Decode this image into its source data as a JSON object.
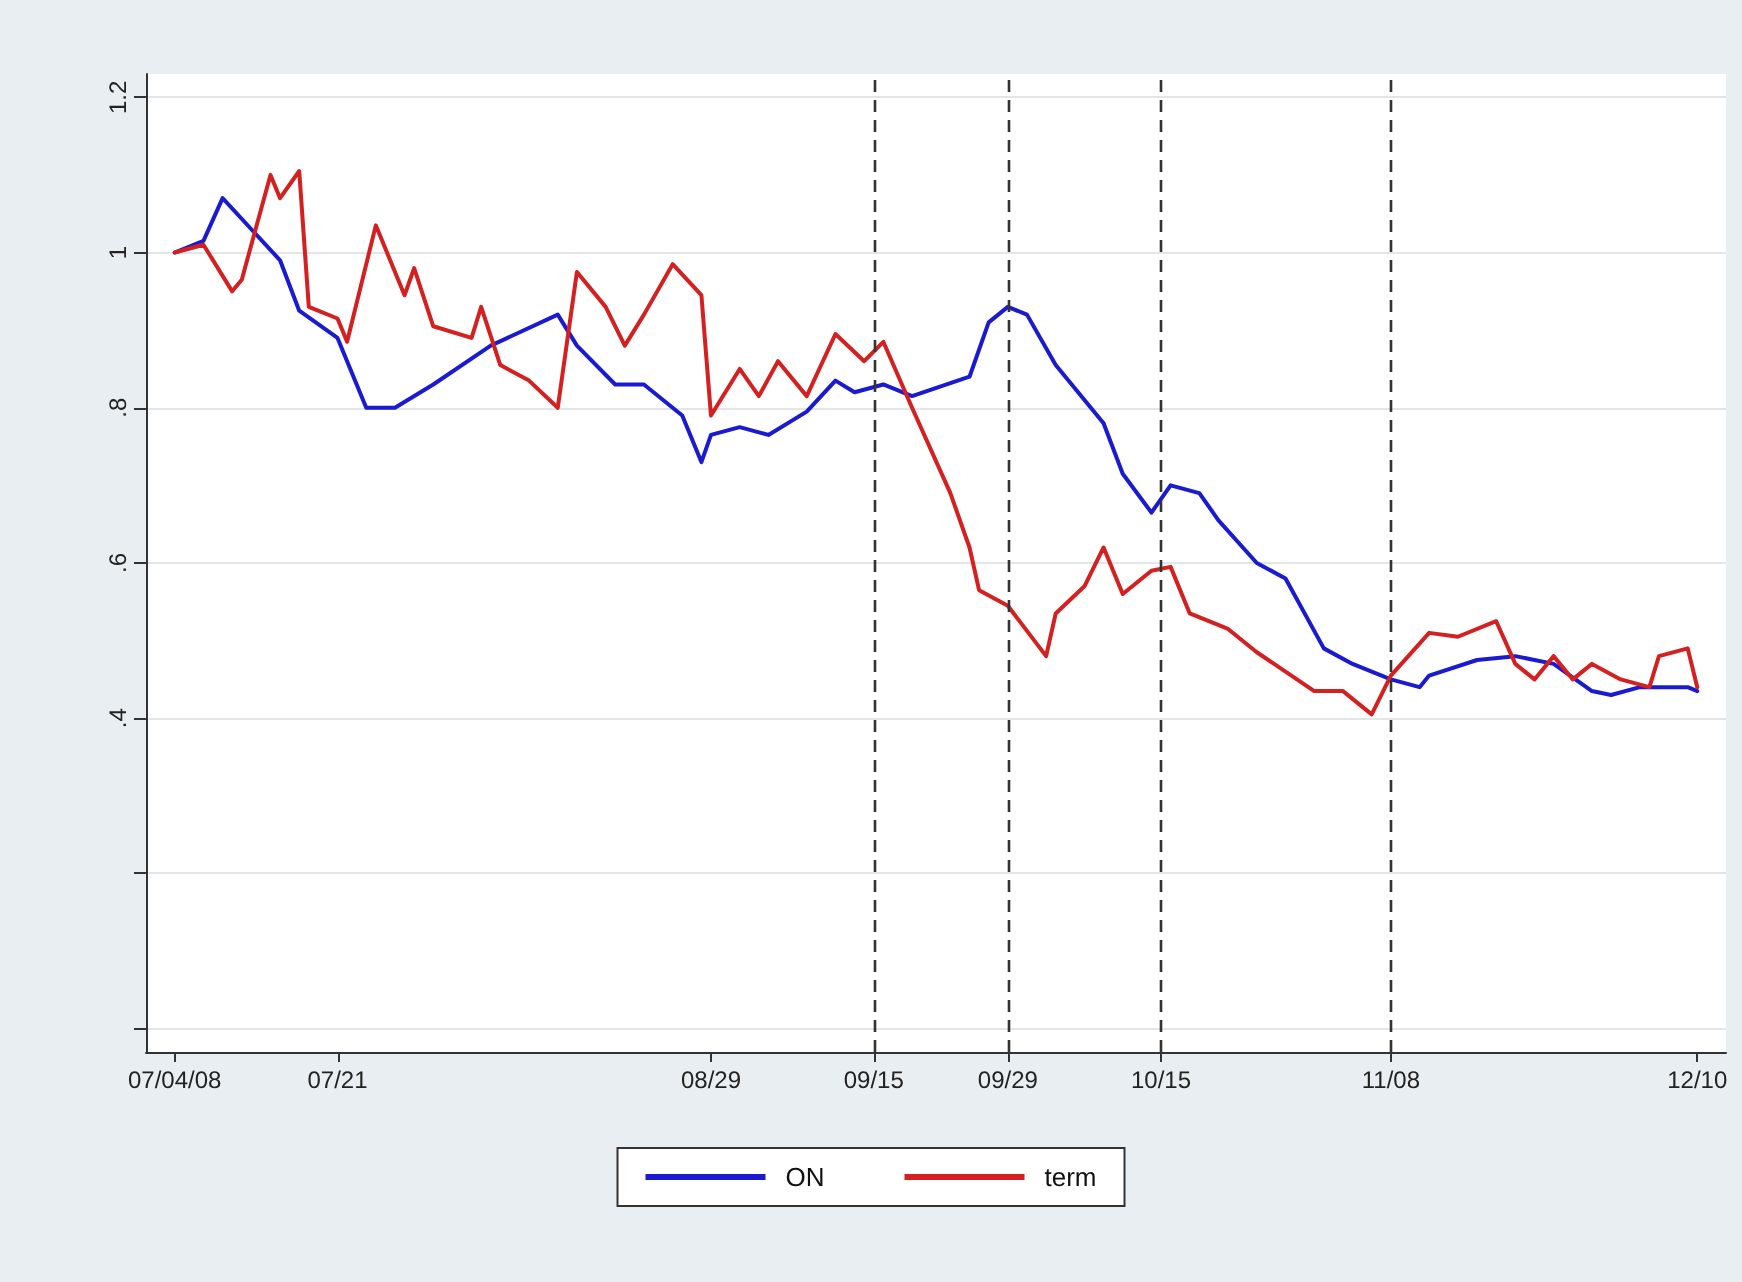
{
  "chart_data": {
    "type": "line",
    "xlim": [
      "2008-07-01",
      "2008-12-13"
    ],
    "xticks": [
      {
        "value": "2008-07-04",
        "label": "07/04/08"
      },
      {
        "value": "2008-07-21",
        "label": "07/21"
      },
      {
        "value": "2008-08-29",
        "label": "08/29"
      },
      {
        "value": "2008-09-15",
        "label": "09/15"
      },
      {
        "value": "2008-09-29",
        "label": "09/29"
      },
      {
        "value": "2008-10-15",
        "label": "10/15"
      },
      {
        "value": "2008-11-08",
        "label": "11/08"
      },
      {
        "value": "2008-12-10",
        "label": "12/10"
      }
    ],
    "ylim": [
      -0.03,
      1.23
    ],
    "yticks": [
      {
        "value": 0,
        "label": null
      },
      {
        "value": 0.2,
        "label": null
      },
      {
        "value": 0.4,
        "label": ".4"
      },
      {
        "value": 0.6,
        "label": ".6"
      },
      {
        "value": 0.8,
        "label": ".8"
      },
      {
        "value": 1,
        "label": "1"
      },
      {
        "value": 1.2,
        "label": "1.2"
      }
    ],
    "grid": "y",
    "legend": "bottom",
    "marker": "none",
    "line_style": "solid",
    "ref_lines": [
      {
        "axis": "x",
        "value": "2008-09-15",
        "color": "#333333",
        "line_style": "dashed"
      },
      {
        "axis": "x",
        "value": "2008-09-29",
        "color": "#333333",
        "line_style": "dashed"
      },
      {
        "axis": "x",
        "value": "2008-10-15",
        "color": "#333333",
        "line_style": "dashed"
      },
      {
        "axis": "x",
        "value": "2008-11-08",
        "color": "#333333",
        "line_style": "dashed"
      }
    ],
    "series": [
      {
        "name": "ON",
        "color": "#1a1ad0",
        "x": [
          "2008-07-04",
          "2008-07-07",
          "2008-07-09",
          "2008-07-12",
          "2008-07-15",
          "2008-07-17",
          "2008-07-21",
          "2008-07-24",
          "2008-07-27",
          "2008-07-31",
          "2008-08-06",
          "2008-08-13",
          "2008-08-15",
          "2008-08-19",
          "2008-08-22",
          "2008-08-26",
          "2008-08-28",
          "2008-08-29",
          "2008-09-01",
          "2008-09-04",
          "2008-09-08",
          "2008-09-11",
          "2008-09-13",
          "2008-09-16",
          "2008-09-19",
          "2008-09-25",
          "2008-09-27",
          "2008-09-29",
          "2008-10-01",
          "2008-10-04",
          "2008-10-09",
          "2008-10-11",
          "2008-10-14",
          "2008-10-16",
          "2008-10-19",
          "2008-10-21",
          "2008-10-25",
          "2008-10-28",
          "2008-11-01",
          "2008-11-04",
          "2008-11-08",
          "2008-11-11",
          "2008-11-12",
          "2008-11-17",
          "2008-11-21",
          "2008-11-25",
          "2008-11-29",
          "2008-12-01",
          "2008-12-04",
          "2008-12-09",
          "2008-12-10"
        ],
        "values": [
          1.0,
          1.015,
          1.07,
          1.03,
          0.99,
          0.925,
          0.89,
          0.8,
          0.8,
          0.83,
          0.88,
          0.92,
          0.88,
          0.83,
          0.83,
          0.79,
          0.73,
          0.765,
          0.775,
          0.765,
          0.795,
          0.835,
          0.82,
          0.83,
          0.815,
          0.84,
          0.91,
          0.93,
          0.92,
          0.855,
          0.78,
          0.715,
          0.665,
          0.7,
          0.69,
          0.655,
          0.6,
          0.58,
          0.49,
          0.47,
          0.45,
          0.44,
          0.455,
          0.475,
          0.48,
          0.47,
          0.435,
          0.43,
          0.44,
          0.44,
          0.435
        ]
      },
      {
        "name": "term",
        "color": "#d42020",
        "x": [
          "2008-07-04",
          "2008-07-07",
          "2008-07-10",
          "2008-07-11",
          "2008-07-14",
          "2008-07-15",
          "2008-07-17",
          "2008-07-18",
          "2008-07-21",
          "2008-07-22",
          "2008-07-25",
          "2008-07-28",
          "2008-07-29",
          "2008-07-31",
          "2008-08-04",
          "2008-08-05",
          "2008-08-07",
          "2008-08-10",
          "2008-08-13",
          "2008-08-15",
          "2008-08-18",
          "2008-08-20",
          "2008-08-22",
          "2008-08-25",
          "2008-08-28",
          "2008-08-29",
          "2008-09-01",
          "2008-09-03",
          "2008-09-05",
          "2008-09-08",
          "2008-09-11",
          "2008-09-14",
          "2008-09-16",
          "2008-09-19",
          "2008-09-23",
          "2008-09-25",
          "2008-09-26",
          "2008-09-29",
          "2008-10-03",
          "2008-10-04",
          "2008-10-07",
          "2008-10-09",
          "2008-10-11",
          "2008-10-14",
          "2008-10-16",
          "2008-10-18",
          "2008-10-22",
          "2008-10-25",
          "2008-10-31",
          "2008-11-03",
          "2008-11-06",
          "2008-11-08",
          "2008-11-12",
          "2008-11-15",
          "2008-11-19",
          "2008-11-21",
          "2008-11-23",
          "2008-11-25",
          "2008-11-27",
          "2008-11-29",
          "2008-12-02",
          "2008-12-05",
          "2008-12-06",
          "2008-12-09",
          "2008-12-10"
        ],
        "values": [
          1.0,
          1.01,
          0.95,
          0.965,
          1.1,
          1.07,
          1.105,
          0.93,
          0.915,
          0.885,
          1.035,
          0.945,
          0.98,
          0.905,
          0.89,
          0.93,
          0.855,
          0.835,
          0.8,
          0.975,
          0.93,
          0.88,
          0.92,
          0.985,
          0.945,
          0.79,
          0.85,
          0.815,
          0.86,
          0.815,
          0.895,
          0.86,
          0.885,
          0.8,
          0.69,
          0.62,
          0.565,
          0.545,
          0.48,
          0.535,
          0.57,
          0.62,
          0.56,
          0.59,
          0.595,
          0.535,
          0.515,
          0.485,
          0.435,
          0.435,
          0.405,
          0.455,
          0.51,
          0.505,
          0.525,
          0.47,
          0.45,
          0.48,
          0.45,
          0.47,
          0.45,
          0.44,
          0.48,
          0.49,
          0.44
        ]
      }
    ]
  }
}
